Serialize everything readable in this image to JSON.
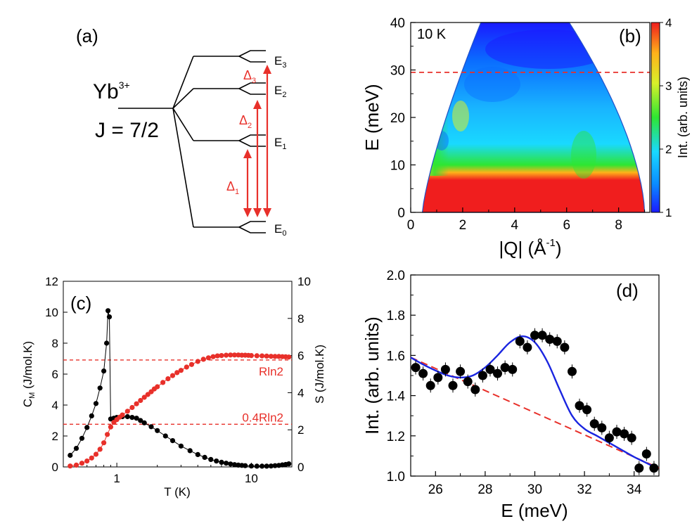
{
  "colors": {
    "red": "#e8302a",
    "black": "#000000",
    "blue": "#1a25e0",
    "cmap": [
      "#1a1aff",
      "#0a8cff",
      "#19d9ff",
      "#2ee632",
      "#d8f02a",
      "#ffb11a",
      "#f01e1e"
    ]
  },
  "chart_data": [
    {
      "panel": "a",
      "type": "diagram",
      "label": "(a)",
      "ion": "Yb",
      "ion_charge": "3+",
      "j_text": "J = 7/2",
      "levels": [
        {
          "name": "E",
          "sub": "0"
        },
        {
          "name": "E",
          "sub": "1"
        },
        {
          "name": "E",
          "sub": "2"
        },
        {
          "name": "E",
          "sub": "3"
        }
      ],
      "gaps": [
        {
          "name": "Δ",
          "sub": "1"
        },
        {
          "name": "Δ",
          "sub": "2"
        },
        {
          "name": "Δ",
          "sub": "3"
        }
      ]
    },
    {
      "panel": "b",
      "type": "heatmap",
      "label": "(b)",
      "temperature": "10 K",
      "xlabel": "|Q| (Å",
      "xlabel_sup": "-1",
      "xlabel_close": ")",
      "ylabel": "E (meV)",
      "xlim": [
        0,
        9.2
      ],
      "ylim": [
        0,
        40
      ],
      "xticks": [
        "0",
        "2",
        "4",
        "6",
        "8"
      ],
      "yticks": [
        "0",
        "10",
        "20",
        "30",
        "40"
      ],
      "cut_energy": 29.5,
      "colorbar": {
        "label": "Int. (arb. units)",
        "range": [
          1,
          4
        ],
        "ticks": [
          "1",
          "2",
          "3",
          "4"
        ]
      }
    },
    {
      "panel": "c",
      "type": "scatter",
      "label": "(c)",
      "xscale": "log",
      "xlim": [
        0.4,
        20
      ],
      "xticks": [
        "1",
        "10"
      ],
      "xlabel": "T (K)",
      "ylabel_left": "C",
      "ylabel_left_sub": "M",
      "ylabel_left_rest": " (J/mol.K)",
      "ylabel_right": "S (J/mol.K)",
      "ylim_left": [
        0,
        12
      ],
      "ylim_right": [
        0,
        10
      ],
      "yticks_left": [
        "0",
        "2",
        "4",
        "6",
        "8",
        "10",
        "12"
      ],
      "yticks_right": [
        "0",
        "2",
        "4",
        "6",
        "8",
        "10"
      ],
      "series": [
        {
          "name": "C_M",
          "axis": "left",
          "color": "#000000",
          "x": [
            0.45,
            0.5,
            0.55,
            0.6,
            0.65,
            0.7,
            0.75,
            0.8,
            0.84,
            0.86,
            0.88,
            0.9,
            0.95,
            1.0,
            1.1,
            1.2,
            1.3,
            1.4,
            1.5,
            1.6,
            1.8,
            2.0,
            2.3,
            2.6,
            3.0,
            3.5,
            4.0,
            4.5,
            5.0,
            5.5,
            6.0,
            6.5,
            7.0,
            7.5,
            8.0,
            8.5,
            9.0,
            10.0,
            11.0,
            12.0,
            13.0,
            14.0,
            15.0,
            16.0,
            17.0,
            18.0,
            19.0
          ],
          "y": [
            0.75,
            1.2,
            1.85,
            2.55,
            3.3,
            4.1,
            5.1,
            6.2,
            8.0,
            10.1,
            9.7,
            3.1,
            3.15,
            3.2,
            3.25,
            3.25,
            3.2,
            3.15,
            3.0,
            2.85,
            2.6,
            2.35,
            2.0,
            1.7,
            1.35,
            1.05,
            0.8,
            0.62,
            0.48,
            0.38,
            0.3,
            0.24,
            0.19,
            0.15,
            0.12,
            0.1,
            0.08,
            0.06,
            0.05,
            0.05,
            0.05,
            0.06,
            0.08,
            0.1,
            0.13,
            0.16,
            0.2
          ]
        },
        {
          "name": "S",
          "axis": "right",
          "color": "#e8302a",
          "x": [
            0.45,
            0.5,
            0.55,
            0.6,
            0.65,
            0.7,
            0.75,
            0.8,
            0.85,
            0.9,
            0.95,
            1.0,
            1.05,
            1.1,
            1.2,
            1.3,
            1.4,
            1.5,
            1.6,
            1.7,
            1.8,
            1.9,
            2.0,
            2.2,
            2.4,
            2.6,
            2.8,
            3.0,
            3.3,
            3.6,
            4.0,
            4.4,
            4.8,
            5.2,
            5.6,
            6.0,
            6.5,
            7.0,
            7.5,
            8.0,
            8.5,
            9.0,
            9.5,
            10.0,
            11.0,
            12.0,
            13.0,
            14.0,
            15.0,
            16.0,
            17.0,
            18.0,
            19.0
          ],
          "y": [
            0.05,
            0.1,
            0.2,
            0.32,
            0.48,
            0.68,
            0.95,
            1.3,
            1.75,
            2.15,
            2.4,
            2.55,
            2.68,
            2.8,
            3.0,
            3.2,
            3.4,
            3.58,
            3.75,
            3.9,
            4.05,
            4.2,
            4.32,
            4.55,
            4.75,
            4.92,
            5.08,
            5.2,
            5.38,
            5.52,
            5.68,
            5.8,
            5.88,
            5.94,
            5.98,
            6.0,
            6.02,
            6.03,
            6.03,
            6.03,
            6.02,
            6.02,
            6.01,
            6.0,
            5.99,
            5.98,
            5.97,
            5.96,
            5.95,
            5.95,
            5.94,
            5.93,
            5.92
          ]
        }
      ],
      "hlines": [
        {
          "label": "Rln2",
          "value": 5.76,
          "axis": "right"
        },
        {
          "label": "0.4Rln2",
          "value": 2.3,
          "axis": "right"
        }
      ]
    },
    {
      "panel": "d",
      "type": "scatter",
      "label": "(d)",
      "xlabel": "E (meV)",
      "ylabel": "Int. (arb. units)",
      "xlim": [
        25,
        35
      ],
      "ylim": [
        1.0,
        2.0
      ],
      "xticks": [
        "26",
        "28",
        "30",
        "32",
        "34"
      ],
      "yticks": [
        "1.0",
        "1.2",
        "1.4",
        "1.6",
        "1.8",
        "2.0"
      ],
      "points": {
        "x": [
          25.2,
          25.5,
          25.8,
          26.1,
          26.4,
          26.7,
          27.0,
          27.3,
          27.6,
          27.9,
          28.2,
          28.5,
          28.8,
          29.1,
          29.4,
          29.7,
          30.0,
          30.3,
          30.6,
          30.9,
          31.2,
          31.5,
          31.8,
          32.1,
          32.4,
          32.7,
          33.0,
          33.3,
          33.6,
          33.9,
          34.2,
          34.5,
          34.8
        ],
        "y": [
          1.54,
          1.51,
          1.45,
          1.49,
          1.53,
          1.45,
          1.52,
          1.47,
          1.43,
          1.5,
          1.53,
          1.51,
          1.54,
          1.53,
          1.67,
          1.64,
          1.7,
          1.7,
          1.68,
          1.67,
          1.64,
          1.52,
          1.35,
          1.33,
          1.26,
          1.24,
          1.19,
          1.22,
          1.21,
          1.19,
          1.04,
          1.11,
          1.04
        ]
      },
      "baseline": {
        "x": [
          25,
          35
        ],
        "y": [
          1.59,
          1.04
        ]
      },
      "fit": {
        "color": "#1a25e0",
        "x": [
          25.0,
          25.5,
          26.0,
          26.5,
          27.0,
          27.5,
          28.0,
          28.5,
          29.0,
          29.5,
          30.0,
          30.5,
          31.0,
          31.5,
          32.0,
          32.5,
          33.0,
          33.5,
          34.0,
          34.5,
          34.9
        ],
        "y": [
          1.59,
          1.555,
          1.525,
          1.5,
          1.49,
          1.5,
          1.54,
          1.6,
          1.665,
          1.695,
          1.665,
          1.57,
          1.43,
          1.3,
          1.235,
          1.2,
          1.165,
          1.13,
          1.095,
          1.065,
          1.04
        ]
      }
    }
  ]
}
